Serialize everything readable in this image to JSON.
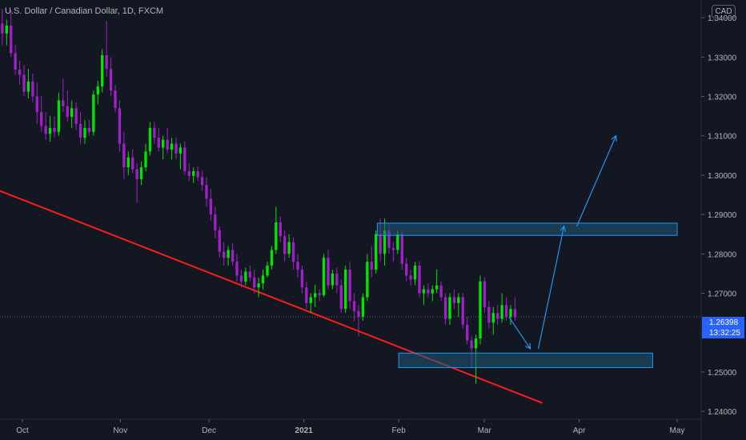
{
  "header": {
    "symbol_title": "U.S. Dollar / Canadian Dollar, 1D, FXCM",
    "currency": "CAD"
  },
  "last_price": {
    "value": "1.26398",
    "countdown": "13:32:25",
    "level": 1.26398
  },
  "colors": {
    "background": "#131722",
    "up_candle": "#00e600",
    "down_candle": "#a020c8",
    "trendline": "#ff1a1a",
    "zone_border": "#2196f3",
    "zone_fill": "#1e5a78",
    "arrow": "#2196f3",
    "price_tag": "#2962ff",
    "axis_text": "#b2b5be"
  },
  "chart_data": {
    "type": "candlestick",
    "title": "U.S. Dollar / Canadian Dollar, 1D, FXCM",
    "timeframe": "1D",
    "ylim": [
      1.238,
      1.3445
    ],
    "y_ticks": [
      1.24,
      1.25,
      1.26,
      1.27,
      1.28,
      1.29,
      1.3,
      1.31,
      1.32,
      1.33,
      1.34
    ],
    "y_tick_labels": [
      "1.24000",
      "1.25000",
      "1.26000",
      "1.27000",
      "1.28000",
      "1.29000",
      "1.30000",
      "1.31000",
      "1.32000",
      "1.33000",
      "1.34000"
    ],
    "x_ticks": [
      "Oct",
      "Nov",
      "Dec",
      "2021",
      "Feb",
      "Mar",
      "Apr",
      "May"
    ],
    "x_tick_dates": [
      "2020-10-01",
      "2020-11-02",
      "2020-12-01",
      "2021-01-01",
      "2021-02-01",
      "2021-03-01",
      "2021-04-01",
      "2021-05-03"
    ],
    "series": [
      {
        "dates_start": "2020-09-23",
        "dates_end": "2021-03-11",
        "ohlc": [
          [
            1.333,
            1.3418,
            1.3315,
            1.3385
          ],
          [
            1.3385,
            1.3422,
            1.333,
            1.336
          ],
          [
            1.336,
            1.3395,
            1.333,
            1.338
          ],
          [
            1.338,
            1.342,
            1.33,
            1.331
          ],
          [
            1.331,
            1.333,
            1.3255,
            1.3268
          ],
          [
            1.3268,
            1.329,
            1.323,
            1.3255
          ],
          [
            1.3255,
            1.328,
            1.32,
            1.3212
          ],
          [
            1.3212,
            1.327,
            1.3195,
            1.3238
          ],
          [
            1.3238,
            1.3258,
            1.3185,
            1.32
          ],
          [
            1.32,
            1.3235,
            1.313,
            1.316
          ],
          [
            1.316,
            1.32,
            1.311,
            1.3125
          ],
          [
            1.3125,
            1.316,
            1.309,
            1.3105
          ],
          [
            1.3105,
            1.315,
            1.3085,
            1.312
          ],
          [
            1.312,
            1.315,
            1.3095,
            1.311
          ],
          [
            1.311,
            1.321,
            1.31,
            1.319
          ],
          [
            1.319,
            1.3245,
            1.316,
            1.3175
          ],
          [
            1.3175,
            1.3215,
            1.3135,
            1.3148
          ],
          [
            1.3148,
            1.319,
            1.312,
            1.317
          ],
          [
            1.317,
            1.3185,
            1.3115,
            1.313
          ],
          [
            1.313,
            1.316,
            1.308,
            1.3095
          ],
          [
            1.3095,
            1.314,
            1.308,
            1.312
          ],
          [
            1.312,
            1.314,
            1.31,
            1.311
          ],
          [
            1.311,
            1.3215,
            1.31,
            1.3205
          ],
          [
            1.3205,
            1.324,
            1.318,
            1.3225
          ],
          [
            1.3225,
            1.332,
            1.321,
            1.3305
          ],
          [
            1.3305,
            1.3392,
            1.325,
            1.327
          ],
          [
            1.327,
            1.33,
            1.32,
            1.3215
          ],
          [
            1.3215,
            1.323,
            1.316,
            1.317
          ],
          [
            1.317,
            1.319,
            1.306,
            1.308
          ],
          [
            1.308,
            1.311,
            1.299,
            1.302
          ],
          [
            1.302,
            1.306,
            1.3,
            1.3045
          ],
          [
            1.3045,
            1.3065,
            1.3005,
            1.3015
          ],
          [
            1.3015,
            1.303,
            1.293,
            1.299
          ],
          [
            1.299,
            1.3035,
            1.2975,
            1.302
          ],
          [
            1.302,
            1.308,
            1.301,
            1.306
          ],
          [
            1.306,
            1.3135,
            1.305,
            1.312
          ],
          [
            1.312,
            1.3135,
            1.308,
            1.3095
          ],
          [
            1.3095,
            1.312,
            1.306,
            1.307
          ],
          [
            1.307,
            1.31,
            1.304,
            1.309
          ],
          [
            1.309,
            1.312,
            1.3055,
            1.3065
          ],
          [
            1.3065,
            1.3095,
            1.304,
            1.308
          ],
          [
            1.308,
            1.3095,
            1.304,
            1.3055
          ],
          [
            1.3055,
            1.308,
            1.3015,
            1.307
          ],
          [
            1.307,
            1.3085,
            1.3,
            1.301
          ],
          [
            1.301,
            1.303,
            1.2985,
            1.2998
          ],
          [
            1.2998,
            1.302,
            1.298,
            1.301
          ],
          [
            1.301,
            1.3022,
            1.2985,
            1.2995
          ],
          [
            1.2995,
            1.3012,
            1.296,
            1.2975
          ],
          [
            1.2975,
            1.2995,
            1.292,
            1.294
          ],
          [
            1.294,
            1.2965,
            1.2885,
            1.29
          ],
          [
            1.29,
            1.292,
            1.284,
            1.286
          ],
          [
            1.286,
            1.287,
            1.279,
            1.2805
          ],
          [
            1.2805,
            1.283,
            1.277,
            1.279
          ],
          [
            1.279,
            1.282,
            1.277,
            1.281
          ],
          [
            1.281,
            1.2828,
            1.277,
            1.278
          ],
          [
            1.278,
            1.28,
            1.273,
            1.2745
          ],
          [
            1.2745,
            1.276,
            1.2715,
            1.273
          ],
          [
            1.273,
            1.2765,
            1.272,
            1.2755
          ],
          [
            1.2755,
            1.277,
            1.273,
            1.274
          ],
          [
            1.274,
            1.276,
            1.27,
            1.2715
          ],
          [
            1.2715,
            1.274,
            1.269,
            1.2725
          ],
          [
            1.2725,
            1.276,
            1.271,
            1.2745
          ],
          [
            1.2745,
            1.278,
            1.274,
            1.277
          ],
          [
            1.277,
            1.282,
            1.276,
            1.281
          ],
          [
            1.281,
            1.292,
            1.28,
            1.288
          ],
          [
            1.288,
            1.2895,
            1.283,
            1.2845
          ],
          [
            1.2845,
            1.286,
            1.278,
            1.28
          ],
          [
            1.28,
            1.285,
            1.279,
            1.283
          ],
          [
            1.283,
            1.2842,
            1.276,
            1.278
          ],
          [
            1.278,
            1.28,
            1.274,
            1.276
          ],
          [
            1.276,
            1.277,
            1.27,
            1.2715
          ],
          [
            1.2715,
            1.273,
            1.266,
            1.2675
          ],
          [
            1.2675,
            1.27,
            1.265,
            1.269
          ],
          [
            1.269,
            1.2722,
            1.2665,
            1.27
          ],
          [
            1.27,
            1.271,
            1.268,
            1.2695
          ],
          [
            1.2695,
            1.28,
            1.269,
            1.279
          ],
          [
            1.279,
            1.281,
            1.271,
            1.272
          ],
          [
            1.272,
            1.276,
            1.271,
            1.275
          ],
          [
            1.275,
            1.2765,
            1.27,
            1.272
          ],
          [
            1.272,
            1.2735,
            1.265,
            1.266
          ],
          [
            1.266,
            1.277,
            1.265,
            1.276
          ],
          [
            1.276,
            1.278,
            1.266,
            1.268
          ],
          [
            1.268,
            1.27,
            1.263,
            1.2655
          ],
          [
            1.2655,
            1.267,
            1.259,
            1.264
          ],
          [
            1.264,
            1.27,
            1.263,
            1.269
          ],
          [
            1.269,
            1.28,
            1.268,
            1.278
          ],
          [
            1.278,
            1.282,
            1.274,
            1.276
          ],
          [
            1.276,
            1.286,
            1.275,
            1.285
          ],
          [
            1.285,
            1.289,
            1.278,
            1.28
          ],
          [
            1.28,
            1.289,
            1.277,
            1.286
          ],
          [
            1.286,
            1.2875,
            1.28,
            1.2815
          ],
          [
            1.2815,
            1.283,
            1.278,
            1.281
          ],
          [
            1.281,
            1.286,
            1.28,
            1.285
          ],
          [
            1.285,
            1.286,
            1.276,
            1.2775
          ],
          [
            1.2775,
            1.279,
            1.273,
            1.2745
          ],
          [
            1.2745,
            1.276,
            1.272,
            1.2735
          ],
          [
            1.2735,
            1.278,
            1.272,
            1.277
          ],
          [
            1.277,
            1.278,
            1.269,
            1.27
          ],
          [
            1.27,
            1.272,
            1.267,
            1.271
          ],
          [
            1.271,
            1.2725,
            1.269,
            1.27
          ],
          [
            1.27,
            1.272,
            1.268,
            1.271
          ],
          [
            1.271,
            1.276,
            1.27,
            1.272
          ],
          [
            1.272,
            1.273,
            1.268,
            1.269
          ],
          [
            1.269,
            1.27,
            1.262,
            1.2635
          ],
          [
            1.2635,
            1.27,
            1.262,
            1.269
          ],
          [
            1.269,
            1.271,
            1.266,
            1.2675
          ],
          [
            1.2675,
            1.27,
            1.264,
            1.269
          ],
          [
            1.269,
            1.27,
            1.261,
            1.262
          ],
          [
            1.262,
            1.264,
            1.257,
            1.258
          ],
          [
            1.258,
            1.259,
            1.251,
            1.256
          ],
          [
            1.256,
            1.2595,
            1.247,
            1.2585
          ],
          [
            1.2585,
            1.2745,
            1.257,
            1.273
          ],
          [
            1.273,
            1.274,
            1.265,
            1.2665
          ],
          [
            1.2665,
            1.268,
            1.261,
            1.2625
          ],
          [
            1.2625,
            1.2665,
            1.2595,
            1.265
          ],
          [
            1.265,
            1.267,
            1.262,
            1.2635
          ],
          [
            1.2635,
            1.27,
            1.2625,
            1.267
          ],
          [
            1.267,
            1.269,
            1.263,
            1.264
          ],
          [
            1.264,
            1.267,
            1.262,
            1.266
          ],
          [
            1.266,
            1.269,
            1.263,
            1.264
          ]
        ]
      }
    ],
    "annotations": {
      "trendline": {
        "from": [
          "2020-09-23",
          1.2962
        ],
        "to": [
          "2021-03-20",
          1.2421
        ]
      },
      "resistance_zone": {
        "date_from": "2021-01-25",
        "date_to": "2021-05-03",
        "price_top": 1.2878,
        "price_bottom": 1.2847
      },
      "support_zone": {
        "date_from": "2021-02-01",
        "date_to": "2021-04-25",
        "price_top": 1.2548,
        "price_bottom": 1.2511
      },
      "projection_path": [
        [
          "2021-03-09",
          1.264
        ],
        [
          "2021-03-16",
          1.2559
        ],
        [
          "2021-03-27",
          1.287
        ],
        [
          "2021-04-13",
          1.31
        ]
      ]
    }
  }
}
